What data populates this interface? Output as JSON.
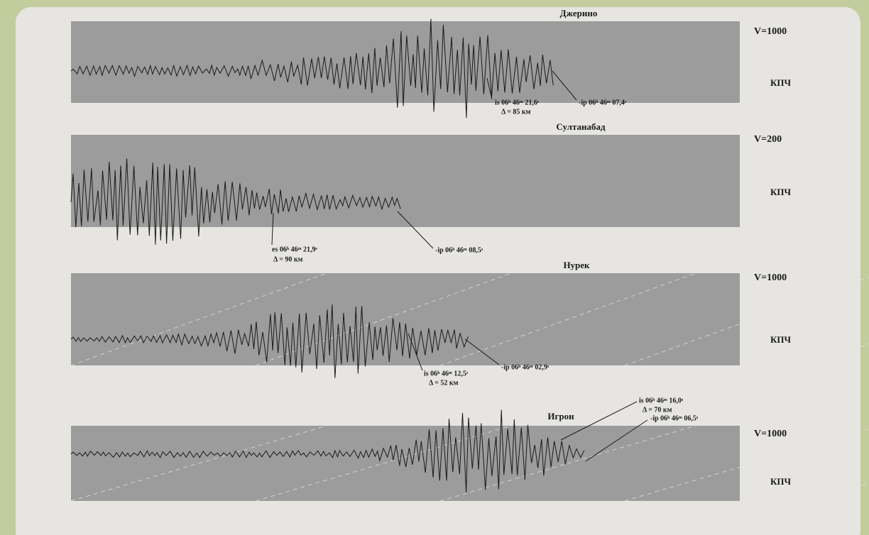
{
  "panels": [
    {
      "station": "Джерино",
      "amplification": "V=1000",
      "filter": "КПЧ",
      "s_wave": "is 06ʰ 46ᵐ 21,6ˢ",
      "distance": "Δ = 85 км",
      "p_wave": "-ip 06ʰ 46ᵐ 07,4ˢ"
    },
    {
      "station": "Султанабад",
      "amplification": "V=200",
      "filter": "КПЧ",
      "s_wave": "es 06ʰ 46ᵐ 21,9ˢ",
      "distance": "Δ = 90 км",
      "p_wave": "-ip 06ʰ 46ᵐ 08,5ˢ"
    },
    {
      "station": "Нурек",
      "amplification": "V=1000",
      "filter": "КПЧ",
      "s_wave": "is 06ʰ 46ᵐ 12,5ˢ",
      "distance": "Δ = 52 км",
      "p_wave": "-ip 06ʰ 46ᵐ 02,9ˢ"
    },
    {
      "station": "Игрон",
      "amplification": "V=1000",
      "filter": "КПЧ",
      "s_wave": "is 06ʰ 46ᵐ 16,0ˢ",
      "distance": "Δ = 70 км",
      "p_wave": "-ip 06ʰ 46ᵐ 06,5ˢ"
    }
  ]
}
